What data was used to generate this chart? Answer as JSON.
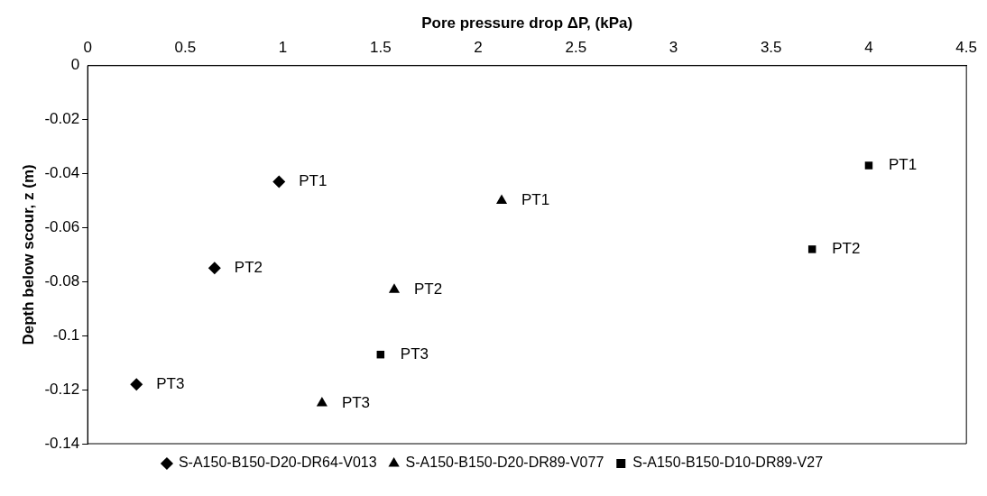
{
  "chart_data": {
    "type": "scatter",
    "xlabel": "Pore pressure drop ΔP, (kPa)",
    "ylabel": "Depth below scour, z (m)",
    "xlim": [
      0,
      4.5
    ],
    "xticks": [
      0,
      0.5,
      1,
      1.5,
      2,
      2.5,
      3,
      3.5,
      4,
      4.5
    ],
    "ylim": [
      -0.14,
      0
    ],
    "yticks": [
      0,
      -0.02,
      -0.04,
      -0.06,
      -0.08,
      -0.1,
      -0.12,
      -0.14
    ],
    "grid": false,
    "legend": "bottom",
    "series": [
      {
        "name": "S-A150-B150-D20-DR64-V013",
        "color": "#000000",
        "marker": "diamond",
        "x": [
          0.98,
          0.65,
          0.25
        ],
        "values": [
          -0.043,
          -0.075,
          -0.118
        ]
      },
      {
        "name": "S-A150-B150-D20-DR89-V077",
        "color": "#000000",
        "marker": "triangle",
        "x": [
          2.12,
          1.57,
          1.2
        ],
        "values": [
          -0.05,
          -0.083,
          -0.125
        ]
      },
      {
        "name": "S-A150-B150-D10-DR89-V27",
        "color": "#000000",
        "marker": "square",
        "x": [
          4.0,
          3.71,
          1.5
        ],
        "values": [
          -0.037,
          -0.068,
          -0.107
        ]
      }
    ],
    "annotations": [
      {
        "text": "PT1",
        "x": 0.98,
        "y": -0.043
      },
      {
        "text": "PT2",
        "x": 0.65,
        "y": -0.075
      },
      {
        "text": "PT3",
        "x": 0.25,
        "y": -0.118
      },
      {
        "text": "PT1",
        "x": 2.12,
        "y": -0.05
      },
      {
        "text": "PT2",
        "x": 1.57,
        "y": -0.083
      },
      {
        "text": "PT3",
        "x": 1.2,
        "y": -0.125
      },
      {
        "text": "PT1",
        "x": 4.0,
        "y": -0.037
      },
      {
        "text": "PT2",
        "x": 3.71,
        "y": -0.068
      },
      {
        "text": "PT3",
        "x": 1.5,
        "y": -0.107
      }
    ]
  }
}
